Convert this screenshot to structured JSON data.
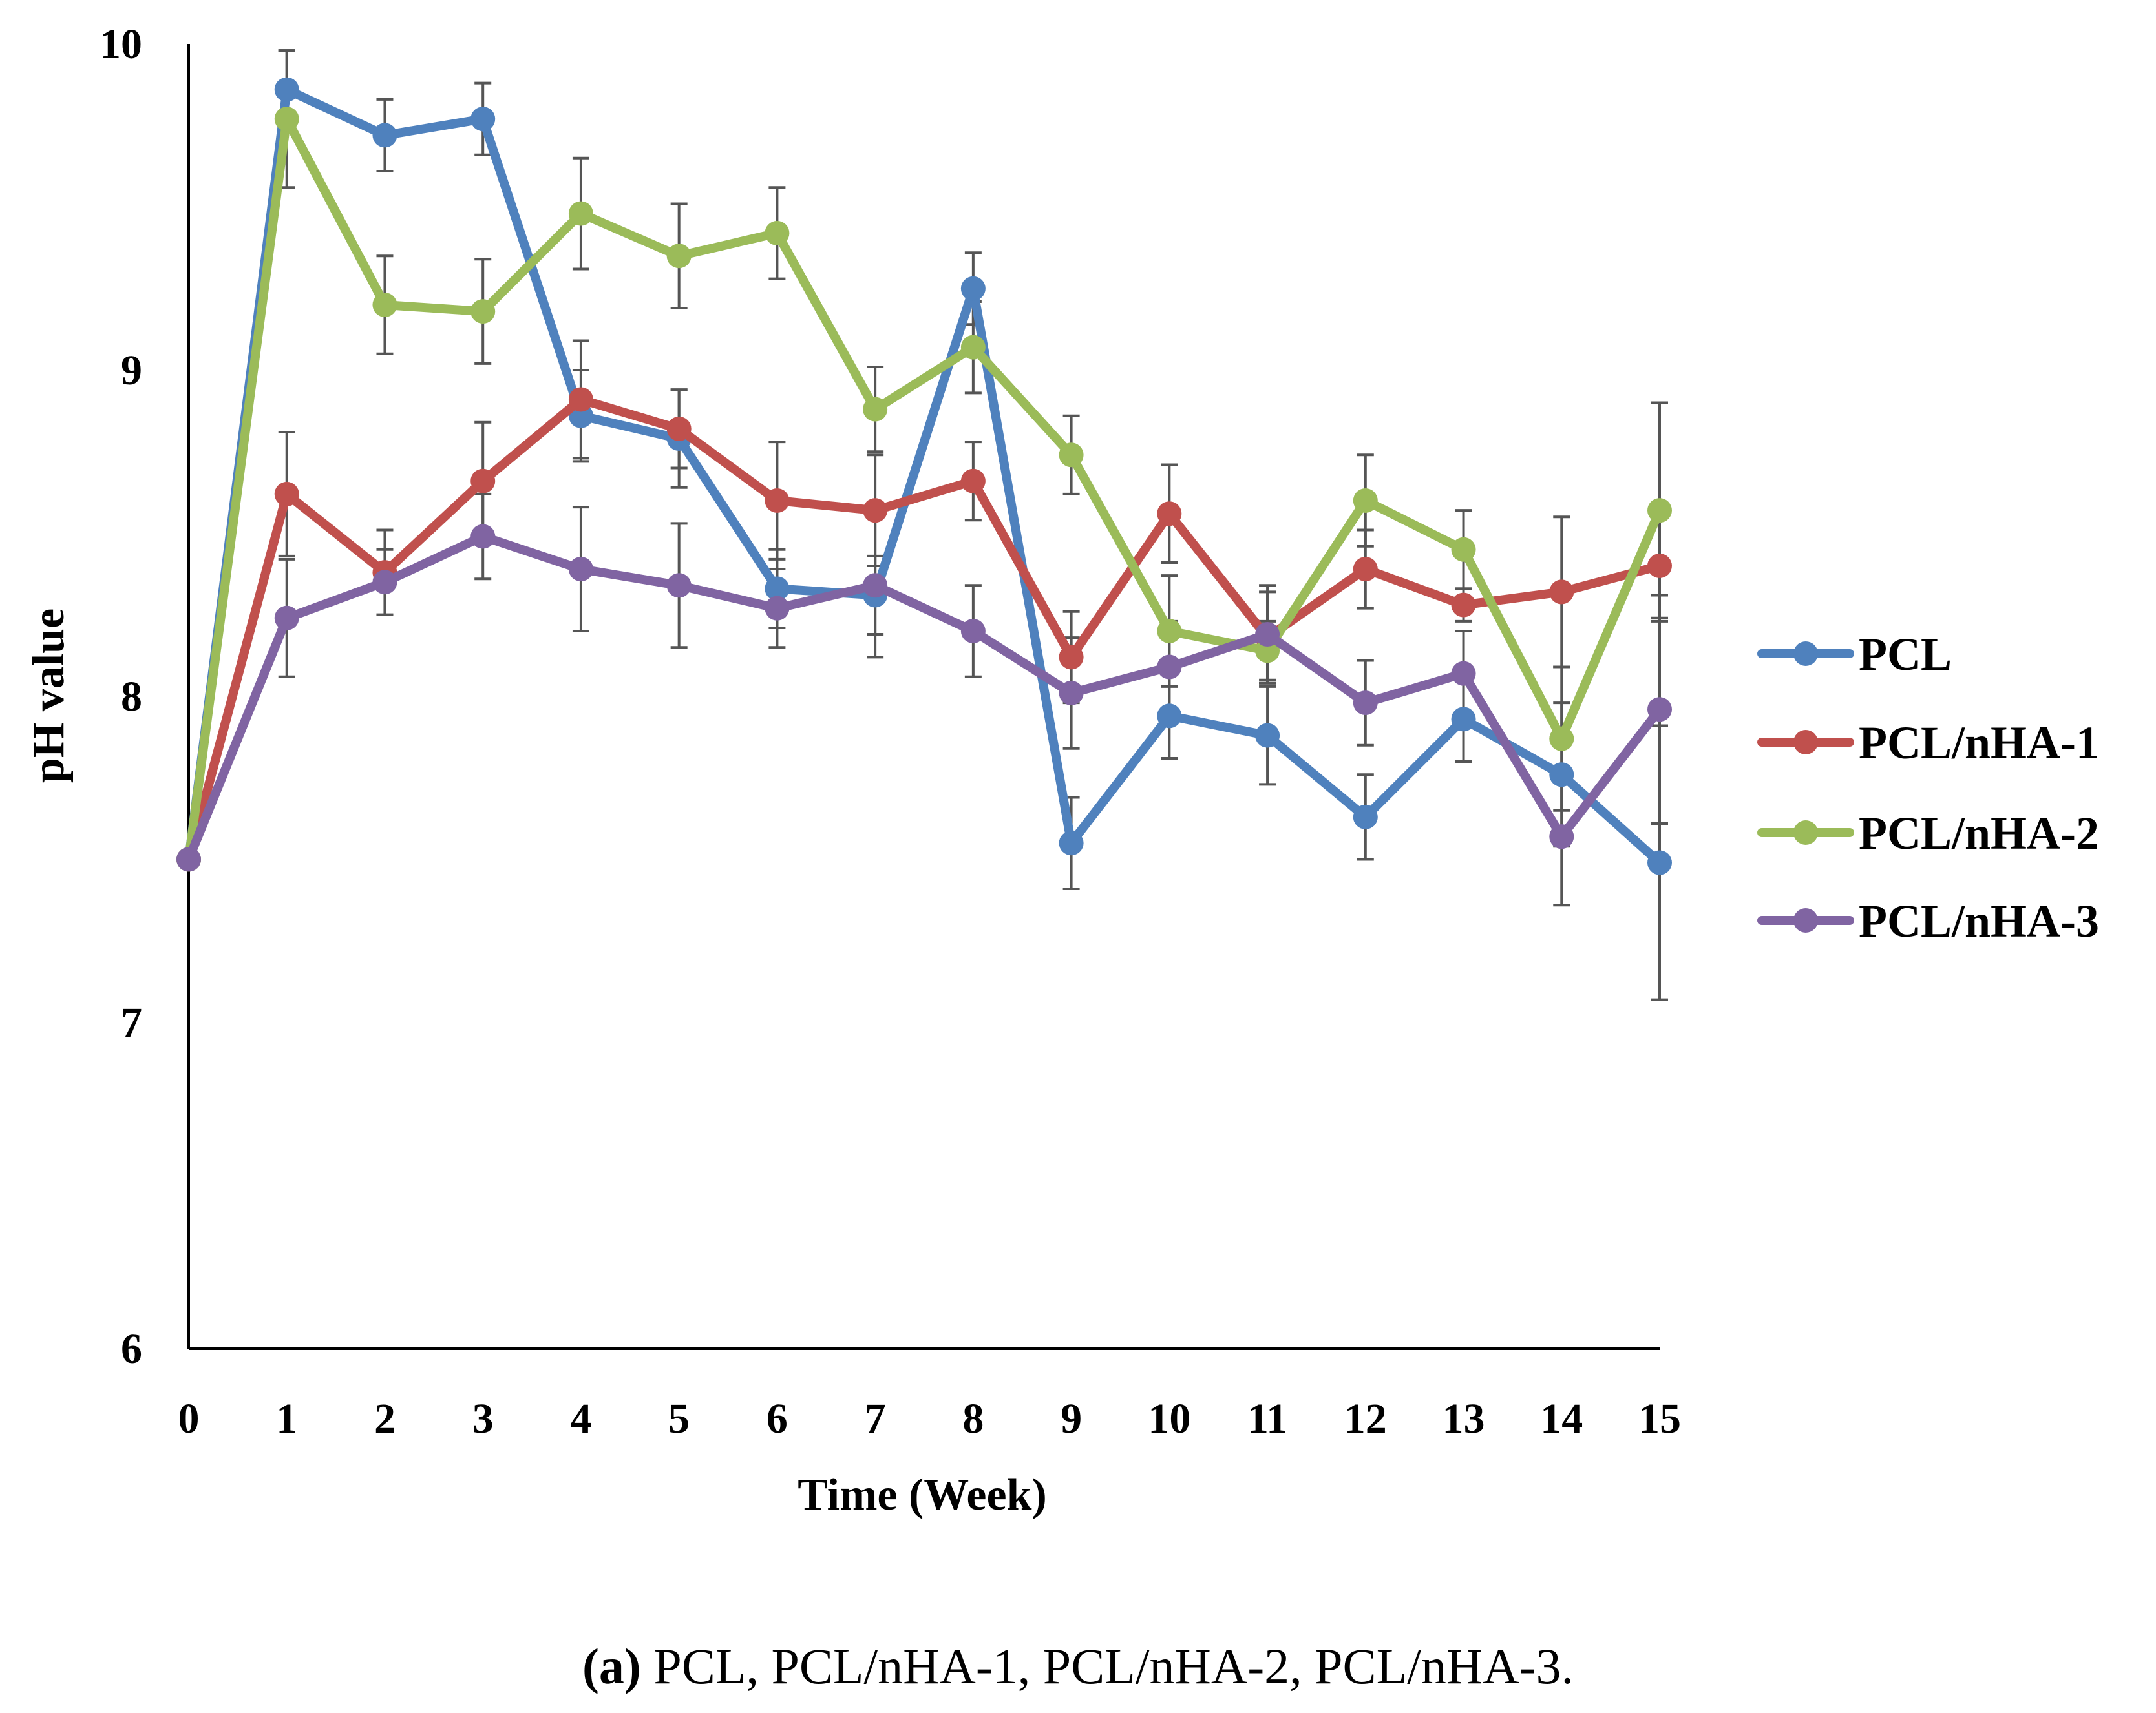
{
  "chart_data": {
    "type": "line",
    "xlabel": "Time (Week)",
    "ylabel": "pH value",
    "x": [
      0,
      1,
      2,
      3,
      4,
      5,
      6,
      7,
      8,
      9,
      10,
      11,
      12,
      13,
      14,
      15
    ],
    "xlim": [
      0,
      15
    ],
    "ylim": [
      6,
      10
    ],
    "yticks": [
      "6",
      "7",
      "8",
      "9",
      "10"
    ],
    "xticks": [
      "0",
      "1",
      "2",
      "3",
      "4",
      "5",
      "6",
      "7",
      "8",
      "9",
      "10",
      "11",
      "12",
      "13",
      "14",
      "15"
    ],
    "grid": false,
    "legend_position": "right",
    "error_bar_color": "#555555",
    "series": [
      {
        "name": "PCL",
        "color": "#4F81BD",
        "values": [
          7.5,
          9.86,
          9.72,
          9.77,
          8.86,
          8.79,
          8.33,
          8.31,
          9.25,
          7.55,
          7.94,
          7.88,
          7.63,
          7.93,
          7.76,
          7.49
        ],
        "errors": [
          0,
          0.12,
          0.11,
          0.11,
          0.14,
          0.15,
          0.12,
          0.12,
          0.11,
          0.14,
          0.13,
          0.15,
          0.13,
          0.13,
          0.22,
          0.42
        ]
      },
      {
        "name": "PCL/nHA-1",
        "color": "#C0504D",
        "values": [
          7.5,
          8.62,
          8.38,
          8.66,
          8.91,
          8.82,
          8.6,
          8.57,
          8.66,
          8.12,
          8.56,
          8.18,
          8.39,
          8.28,
          8.32,
          8.4
        ],
        "errors": [
          0,
          0.19,
          0.13,
          0.18,
          0.18,
          0.12,
          0.18,
          0.17,
          0.12,
          0.14,
          0.15,
          0.14,
          0.12,
          0.05,
          0.23,
          0.17
        ]
      },
      {
        "name": "PCL/nHA-2",
        "color": "#9BBB59",
        "values": [
          7.5,
          9.77,
          9.2,
          9.18,
          9.48,
          9.35,
          9.42,
          8.88,
          9.07,
          8.74,
          8.2,
          8.14,
          8.6,
          8.45,
          7.87,
          8.57
        ],
        "errors": [
          0,
          0.21,
          0.15,
          0.16,
          0.17,
          0.16,
          0.14,
          0.13,
          0.14,
          0.12,
          0.17,
          0.09,
          0.14,
          0.12,
          0.22,
          0.33
        ]
      },
      {
        "name": "PCL/nHA-3",
        "color": "#8064A2",
        "values": [
          7.5,
          8.24,
          8.35,
          8.49,
          8.39,
          8.34,
          8.27,
          8.34,
          8.2,
          8.01,
          8.09,
          8.19,
          7.98,
          8.07,
          7.57,
          7.96
        ],
        "errors": [
          0,
          0.18,
          0.1,
          0.13,
          0.19,
          0.19,
          0.12,
          0.22,
          0.14,
          0.17,
          0.14,
          0.15,
          0.13,
          0.13,
          0.21,
          0.35
        ]
      }
    ]
  },
  "caption": {
    "label": "(a)",
    "text": " PCL, PCL/nHA-1, PCL/nHA-2, PCL/nHA-3."
  }
}
